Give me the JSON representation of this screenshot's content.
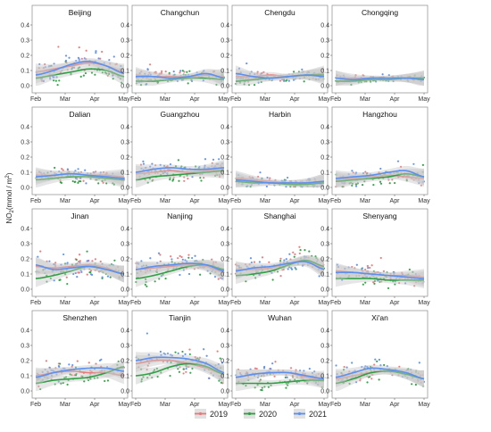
{
  "figure": {
    "ylabel_main": "NO",
    "ylabel_sub": "2",
    "ylabel_unit": "(mmol / m",
    "ylabel_sup": "2",
    "ylabel_close": ")"
  },
  "legend": [
    "2019",
    "2020",
    "2021"
  ],
  "colors": {
    "2019": "#e8797a",
    "2020": "#2ea043",
    "2021": "#5b8ff0",
    "band": "#c8c8c8"
  },
  "chart_data": {
    "type": "scatter",
    "layout": "4x4 small multiples with loess smoothing curves and confidence bands",
    "x_ticks": [
      "Feb",
      "Mar",
      "Apr",
      "May"
    ],
    "y_ticks": [
      "0.0",
      "0.1",
      "0.2",
      "0.3",
      "0.4"
    ],
    "ylim": [
      0,
      0.4
    ],
    "x_domain": [
      "2020-02-01",
      "2020-05-01"
    ],
    "series_names": [
      "2019",
      "2020",
      "2021"
    ],
    "panels": [
      {
        "city": "Beijing",
        "curves": {
          "2019": [
            0.09,
            0.11,
            0.13,
            0.15,
            0.13,
            0.09
          ],
          "2020": [
            0.05,
            0.07,
            0.09,
            0.11,
            0.1,
            0.06
          ],
          "2021": [
            0.07,
            0.1,
            0.14,
            0.16,
            0.13,
            0.08
          ]
        },
        "spread": 0.06
      },
      {
        "city": "Changchun",
        "curves": {
          "2019": [
            0.07,
            0.06,
            0.06,
            0.06,
            0.07,
            0.06
          ],
          "2020": [
            0.03,
            0.03,
            0.04,
            0.05,
            0.05,
            0.04
          ],
          "2021": [
            0.06,
            0.06,
            0.05,
            0.06,
            0.08,
            0.05
          ]
        },
        "spread": 0.04
      },
      {
        "city": "Chengdu",
        "curves": {
          "2019": [
            0.06,
            0.06,
            0.07,
            0.06,
            0.07,
            0.08
          ],
          "2020": [
            0.03,
            0.04,
            0.05,
            0.06,
            0.07,
            0.07
          ],
          "2021": [
            0.08,
            0.06,
            0.05,
            0.06,
            0.07,
            0.06
          ]
        },
        "spread": 0.04
      },
      {
        "city": "Chongqing",
        "curves": {
          "2019": [
            0.05,
            0.05,
            0.05,
            0.05,
            0.05,
            0.05
          ],
          "2020": [
            0.03,
            0.03,
            0.04,
            0.04,
            0.05,
            0.05
          ],
          "2021": [
            0.05,
            0.04,
            0.05,
            0.05,
            0.05,
            0.04
          ]
        },
        "spread": 0.02
      },
      {
        "city": "Dalian",
        "curves": {
          "2019": [
            0.08,
            0.08,
            0.09,
            0.08,
            0.08,
            0.07
          ],
          "2020": [
            0.05,
            0.06,
            0.07,
            0.07,
            0.06,
            0.05
          ],
          "2021": [
            0.07,
            0.08,
            0.09,
            0.08,
            0.07,
            0.06
          ]
        },
        "spread": 0.04
      },
      {
        "city": "Guangzhou",
        "curves": {
          "2019": [
            0.09,
            0.1,
            0.11,
            0.1,
            0.11,
            0.12
          ],
          "2020": [
            0.05,
            0.07,
            0.08,
            0.09,
            0.1,
            0.11
          ],
          "2021": [
            0.1,
            0.12,
            0.13,
            0.12,
            0.12,
            0.13
          ]
        },
        "spread": 0.05
      },
      {
        "city": "Harbin",
        "curves": {
          "2019": [
            0.06,
            0.05,
            0.04,
            0.03,
            0.03,
            0.04
          ],
          "2020": [
            0.04,
            0.03,
            0.03,
            0.02,
            0.02,
            0.03
          ],
          "2021": [
            0.05,
            0.04,
            0.03,
            0.03,
            0.03,
            0.04
          ]
        },
        "spread": 0.03
      },
      {
        "city": "Hangzhou",
        "curves": {
          "2019": [
            0.05,
            0.06,
            0.07,
            0.08,
            0.07,
            0.06
          ],
          "2020": [
            0.04,
            0.05,
            0.06,
            0.07,
            0.09,
            0.07
          ],
          "2021": [
            0.06,
            0.07,
            0.08,
            0.1,
            0.11,
            0.07
          ]
        },
        "spread": 0.05
      },
      {
        "city": "Jinan",
        "curves": {
          "2019": [
            0.15,
            0.14,
            0.15,
            0.16,
            0.14,
            0.1
          ],
          "2020": [
            0.07,
            0.09,
            0.12,
            0.15,
            0.13,
            0.1
          ],
          "2021": [
            0.16,
            0.13,
            0.14,
            0.15,
            0.13,
            0.1
          ]
        },
        "spread": 0.06
      },
      {
        "city": "Nanjing",
        "curves": {
          "2019": [
            0.13,
            0.14,
            0.15,
            0.16,
            0.15,
            0.11
          ],
          "2020": [
            0.07,
            0.09,
            0.12,
            0.15,
            0.16,
            0.13
          ],
          "2021": [
            0.13,
            0.15,
            0.16,
            0.17,
            0.16,
            0.12
          ]
        },
        "spread": 0.06
      },
      {
        "city": "Shanghai",
        "curves": {
          "2019": [
            0.13,
            0.13,
            0.14,
            0.17,
            0.19,
            0.14
          ],
          "2020": [
            0.09,
            0.1,
            0.12,
            0.16,
            0.19,
            0.15
          ],
          "2021": [
            0.12,
            0.14,
            0.15,
            0.17,
            0.18,
            0.13
          ]
        },
        "spread": 0.06
      },
      {
        "city": "Shenyang",
        "curves": {
          "2019": [
            0.12,
            0.11,
            0.1,
            0.09,
            0.09,
            0.08
          ],
          "2020": [
            0.07,
            0.07,
            0.07,
            0.06,
            0.06,
            0.06
          ],
          "2021": [
            0.11,
            0.11,
            0.1,
            0.09,
            0.08,
            0.07
          ]
        },
        "spread": 0.05
      },
      {
        "city": "Shenzhen",
        "curves": {
          "2019": [
            0.1,
            0.12,
            0.13,
            0.12,
            0.12,
            0.1
          ],
          "2020": [
            0.05,
            0.07,
            0.08,
            0.09,
            0.12,
            0.16
          ],
          "2021": [
            0.09,
            0.12,
            0.14,
            0.15,
            0.15,
            0.13
          ]
        },
        "spread": 0.05
      },
      {
        "city": "Tianjin",
        "curves": {
          "2019": [
            0.18,
            0.2,
            0.2,
            0.18,
            0.15,
            0.11
          ],
          "2020": [
            0.1,
            0.12,
            0.16,
            0.18,
            0.16,
            0.11
          ],
          "2021": [
            0.2,
            0.22,
            0.22,
            0.21,
            0.18,
            0.12
          ]
        },
        "spread": 0.07
      },
      {
        "city": "Wuhan",
        "curves": {
          "2019": [
            0.09,
            0.11,
            0.12,
            0.12,
            0.09,
            0.07
          ],
          "2020": [
            0.05,
            0.05,
            0.05,
            0.06,
            0.07,
            0.07
          ],
          "2021": [
            0.09,
            0.11,
            0.12,
            0.12,
            0.1,
            0.08
          ]
        },
        "spread": 0.05
      },
      {
        "city": "Xi'an",
        "curves": {
          "2019": [
            0.08,
            0.1,
            0.12,
            0.13,
            0.11,
            0.08
          ],
          "2020": [
            0.05,
            0.08,
            0.12,
            0.13,
            0.11,
            0.08
          ],
          "2021": [
            0.09,
            0.12,
            0.15,
            0.14,
            0.12,
            0.08
          ]
        },
        "spread": 0.06
      }
    ]
  }
}
